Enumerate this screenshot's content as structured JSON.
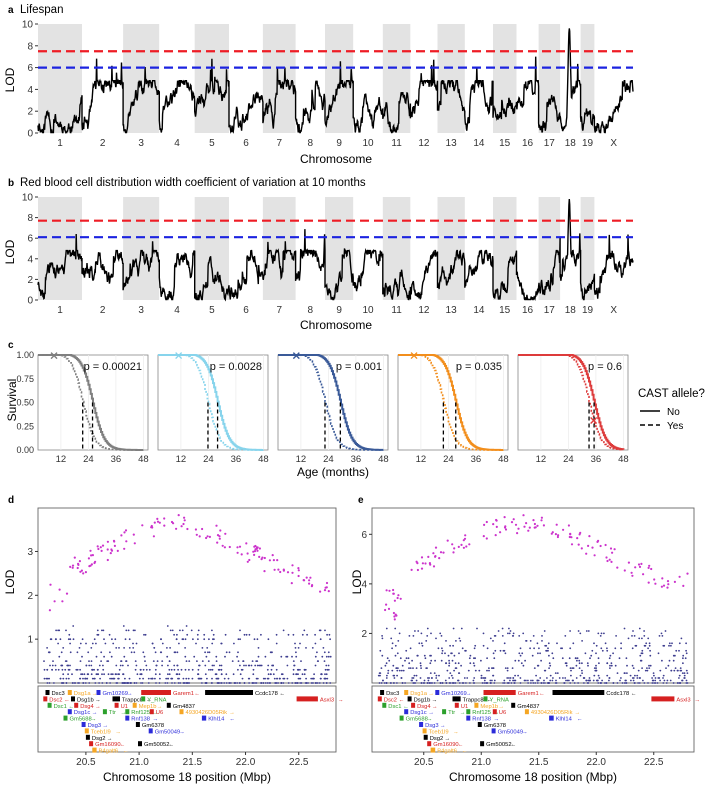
{
  "panels": {
    "a": {
      "letter": "a",
      "title": "Lifespan",
      "xlabel": "Chromosome",
      "ylabel": "LOD",
      "chromosomes": [
        "1",
        "2",
        "3",
        "4",
        "5",
        "6",
        "7",
        "8",
        "9",
        "10",
        "11",
        "12",
        "13",
        "14",
        "15",
        "16",
        "17",
        "18",
        "19",
        "X"
      ],
      "yticks": [
        0,
        2,
        4,
        6,
        8,
        10
      ],
      "ylim": [
        0,
        10
      ],
      "thresholds": [
        {
          "value": 7.5,
          "color": "#ee1c25"
        },
        {
          "value": 6.0,
          "color": "#1c23e0"
        }
      ],
      "peak": {
        "chromosome": "18",
        "lod": 9.2
      },
      "seed": 11
    },
    "b": {
      "letter": "b",
      "title": "Red blood cell distribution width coefficient of variation at 10 months",
      "xlabel": "Chromosome",
      "ylabel": "LOD",
      "chromosomes": [
        "1",
        "2",
        "3",
        "4",
        "5",
        "6",
        "7",
        "8",
        "9",
        "10",
        "11",
        "12",
        "13",
        "14",
        "15",
        "16",
        "17",
        "18",
        "19",
        "X"
      ],
      "yticks": [
        0,
        2,
        4,
        6,
        8,
        10
      ],
      "ylim": [
        0,
        10
      ],
      "thresholds": [
        {
          "value": 7.7,
          "color": "#ee1c25"
        },
        {
          "value": 6.1,
          "color": "#1c23e0"
        }
      ],
      "peak": {
        "chromosome": "18",
        "lod": 9.3
      },
      "seed": 29
    },
    "c": {
      "letter": "c",
      "ylabel": "Survival",
      "xlabel": "Age (months)",
      "xticks": [
        12,
        24,
        36,
        48
      ],
      "yticks": [
        "0.00",
        "0.25",
        "0.50",
        "0.75",
        "1.00"
      ],
      "xlim": [
        2,
        50
      ],
      "legend": {
        "title": "CAST allele?",
        "items": [
          {
            "label": "No",
            "style": "solid"
          },
          {
            "label": "Yes",
            "style": "dashed"
          }
        ]
      },
      "curves": [
        {
          "color": "#7f7f7f",
          "pvalue": "p = 0.00021",
          "median_yes": 21.5,
          "median_no": 25.8,
          "cross_age": 9
        },
        {
          "color": "#87d4ec",
          "pvalue": "p = 0.0028",
          "median_yes": 23.8,
          "median_no": 28.0,
          "cross_age": 11
        },
        {
          "color": "#3a5a98",
          "pvalue": "p = 0.001",
          "median_yes": 22.5,
          "median_no": 29.2,
          "cross_age": 10
        },
        {
          "color": "#f28e1c",
          "pvalue": "p = 0.035",
          "median_yes": 21.8,
          "median_no": 27.2,
          "cross_age": 9
        },
        {
          "color": "#dd3b3b",
          "pvalue": "p = 0.6",
          "median_yes": 33.0,
          "median_no": 35.2,
          "cross_age": 35
        }
      ]
    },
    "d": {
      "letter": "d",
      "ylabel": "LOD",
      "xlabel": "Chromosome 18 position (Mbp)",
      "xticks": [
        "20.5",
        "21.0",
        "21.5",
        "22.0",
        "22.5"
      ],
      "yticks": [
        "1",
        "2",
        "3"
      ],
      "ylim": [
        0,
        3.9
      ],
      "peak_lod": 3.85,
      "seed": 5
    },
    "e": {
      "letter": "e",
      "ylabel": "LOD",
      "xlabel": "Chromosome 18 position (Mbp)",
      "xticks": [
        "20.5",
        "21.0",
        "21.5",
        "22.0",
        "22.5"
      ],
      "yticks": [
        "2",
        "4",
        "6"
      ],
      "ylim": [
        0,
        6.9
      ],
      "peak_lod": 6.85,
      "seed": 17
    }
  },
  "genes": [
    {
      "name": "Dsc3",
      "start": 20.12,
      "end": 20.15,
      "row": 0,
      "color": "#000000",
      "arrow": ""
    },
    {
      "name": "Dsg1a",
      "start": 20.33,
      "end": 20.36,
      "row": 0,
      "color": "#f5a623",
      "arrow": "→"
    },
    {
      "name": "Gm10269",
      "start": 20.6,
      "end": 20.62,
      "row": 0,
      "color": "#2b2bd9",
      "arrow": "→"
    },
    {
      "name": "Garem1",
      "start": 21.02,
      "end": 21.3,
      "row": 0,
      "color": "#d62020",
      "arrow": "←"
    },
    {
      "name": "Ccdc178",
      "start": 21.62,
      "end": 22.07,
      "row": 0,
      "color": "#000000",
      "arrow": "←"
    },
    {
      "name": "Dsc2",
      "start": 20.1,
      "end": 20.13,
      "row": 1,
      "color": "#d62020",
      "arrow": "←"
    },
    {
      "name": "Dsg1b",
      "start": 20.36,
      "end": 20.38,
      "row": 1,
      "color": "#000000",
      "arrow": "→"
    },
    {
      "name": "Trappc8",
      "start": 20.75,
      "end": 20.82,
      "row": 1,
      "color": "#000000",
      "arrow": "←"
    },
    {
      "name": "Y_RNA",
      "start": 21.02,
      "end": 21.04,
      "row": 1,
      "color": "#2ca02c",
      "arrow": ""
    },
    {
      "name": "Asxl3",
      "start": 22.48,
      "end": 22.68,
      "row": 1,
      "color": "#d62020",
      "arrow": "→"
    },
    {
      "name": "Dsc1",
      "start": 20.14,
      "end": 20.17,
      "row": 2,
      "color": "#2ca02c",
      "arrow": "←"
    },
    {
      "name": "Dsg4",
      "start": 20.39,
      "end": 20.42,
      "row": 2,
      "color": "#d62020",
      "arrow": "→"
    },
    {
      "name": "U1",
      "start": 20.77,
      "end": 20.79,
      "row": 2,
      "color": "#d62020",
      "arrow": ""
    },
    {
      "name": "Mep1b",
      "start": 20.94,
      "end": 20.97,
      "row": 2,
      "color": "#f5a623",
      "arrow": "→"
    },
    {
      "name": "Gm4837",
      "start": 21.26,
      "end": 21.28,
      "row": 2,
      "color": "#000000",
      "arrow": ""
    },
    {
      "name": "Dsg1c",
      "start": 20.33,
      "end": 20.36,
      "row": 3,
      "color": "#2b2bd9",
      "arrow": "→"
    },
    {
      "name": "Ttr",
      "start": 20.66,
      "end": 20.68,
      "row": 3,
      "color": "#2ca02c",
      "arrow": "→"
    },
    {
      "name": "Rnf125",
      "start": 20.87,
      "end": 20.9,
      "row": 3,
      "color": "#2ca02c",
      "arrow": "→"
    },
    {
      "name": "U6",
      "start": 21.1,
      "end": 21.12,
      "row": 3,
      "color": "#d62020",
      "arrow": ""
    },
    {
      "name": "4930426D05Rik",
      "start": 21.38,
      "end": 21.4,
      "row": 3,
      "color": "#f5a623",
      "arrow": "→"
    },
    {
      "name": "Gm5688",
      "start": 20.29,
      "end": 20.32,
      "row": 4,
      "color": "#2ca02c",
      "arrow": "→"
    },
    {
      "name": "Rnf138",
      "start": 20.87,
      "end": 20.9,
      "row": 4,
      "color": "#2b2bd9",
      "arrow": "→"
    },
    {
      "name": "Klhl14",
      "start": 21.59,
      "end": 21.63,
      "row": 4,
      "color": "#2b2bd9",
      "arrow": "←"
    },
    {
      "name": "Dsg3",
      "start": 20.46,
      "end": 20.49,
      "row": 5,
      "color": "#2b2bd9",
      "arrow": "→"
    },
    {
      "name": "Gm6378",
      "start": 20.97,
      "end": 20.99,
      "row": 5,
      "color": "#000000",
      "arrow": ""
    },
    {
      "name": "Tceb1l9",
      "start": 20.49,
      "end": 20.52,
      "row": 6,
      "color": "#f5a623",
      "arrow": "→"
    },
    {
      "name": "Gm50049",
      "start": 21.09,
      "end": 21.12,
      "row": 6,
      "color": "#2b2bd9",
      "arrow": "→"
    },
    {
      "name": "Dsg2",
      "start": 20.5,
      "end": 20.53,
      "row": 7,
      "color": "#000000",
      "arrow": "→"
    },
    {
      "name": "Gm16090",
      "start": 20.53,
      "end": 20.56,
      "row": 8,
      "color": "#d62020",
      "arrow": "←"
    },
    {
      "name": "Gm50052",
      "start": 20.99,
      "end": 21.01,
      "row": 8,
      "color": "#000000",
      "arrow": "←"
    },
    {
      "name": "B4galt6",
      "start": 20.56,
      "end": 20.6,
      "row": 9,
      "color": "#f5a623",
      "arrow": "←"
    }
  ],
  "colors": {
    "lod_curve": "#000000",
    "chrom_band": "#e3e3e3",
    "peak_points": "#cc33cc",
    "other_points": "#3d3d8f"
  }
}
